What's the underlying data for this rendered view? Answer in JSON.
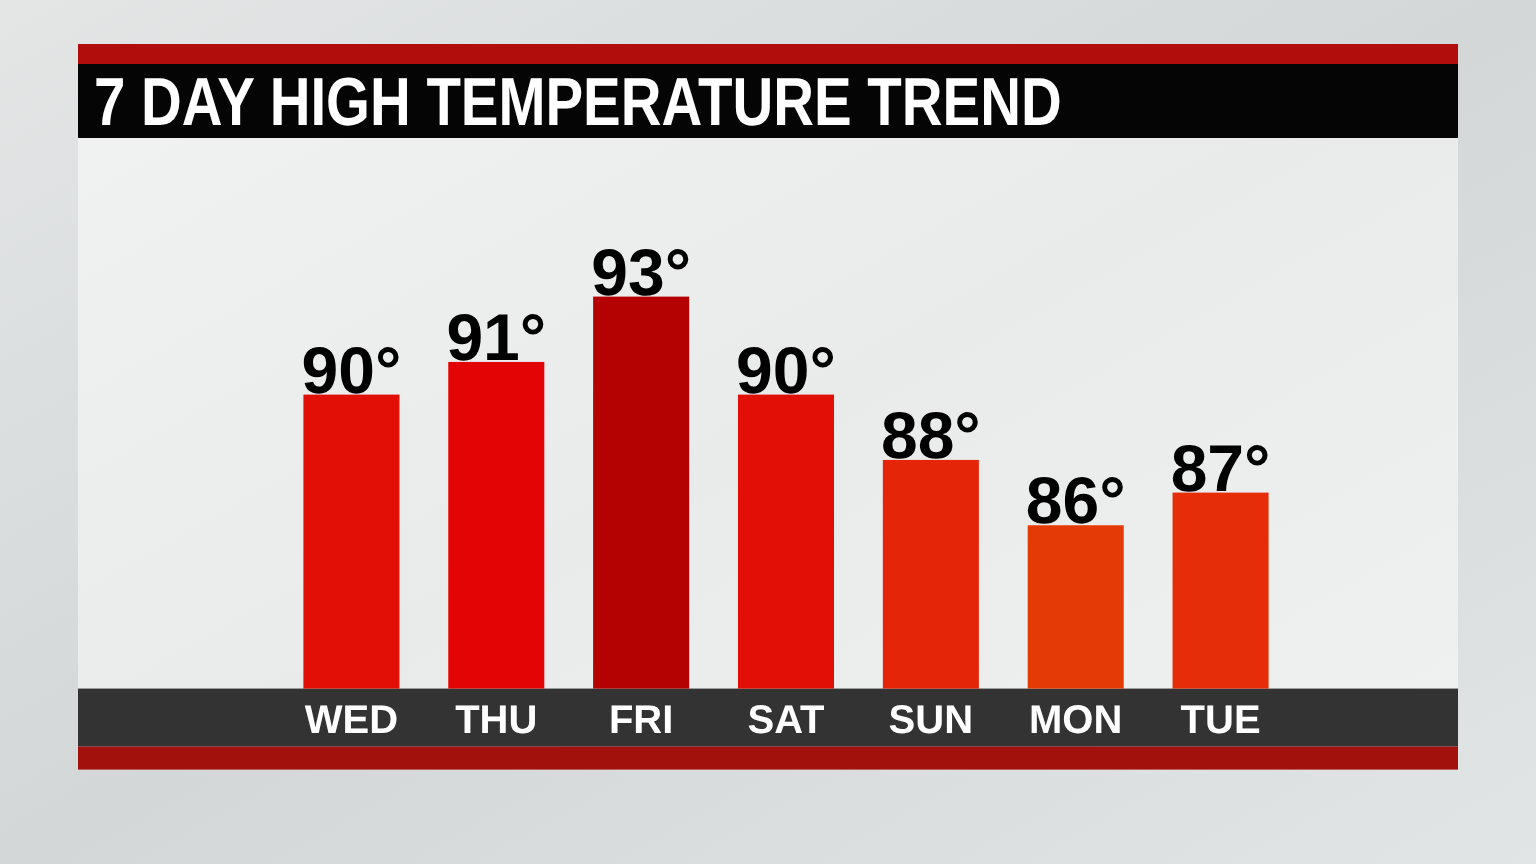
{
  "chart_data": {
    "type": "bar",
    "title": "7 DAY HIGH TEMPERATURE TREND",
    "categories": [
      "WED",
      "THU",
      "FRI",
      "SAT",
      "SUN",
      "MON",
      "TUE"
    ],
    "values": [
      90,
      91,
      93,
      90,
      88,
      86,
      87
    ],
    "colors": [
      "#e10f05",
      "#e30505",
      "#b40202",
      "#e10f05",
      "#e42508",
      "#e43a05",
      "#e52e08"
    ],
    "value_labels": [
      "90°",
      "91°",
      "93°",
      "90°",
      "88°",
      "86°",
      "87°"
    ],
    "ylim": [
      81,
      93
    ],
    "tick_labels": "x"
  }
}
